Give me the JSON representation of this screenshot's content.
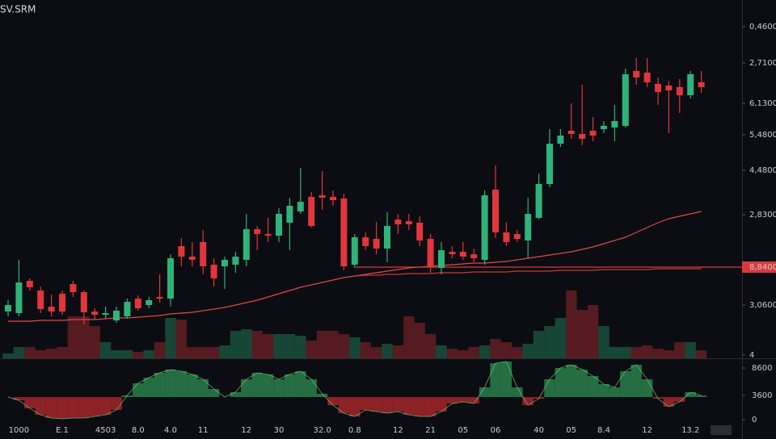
{
  "chart_data": [
    {
      "type": "candlestick",
      "title": "SV.SRM",
      "categories": [
        null,
        "1000",
        null,
        null,
        null,
        "E.1",
        null,
        null,
        null,
        "4503",
        null,
        null,
        "8.0",
        null,
        null,
        "4.0",
        null,
        null,
        "11",
        null,
        null,
        null,
        "12",
        null,
        null,
        "30",
        null,
        null,
        null,
        "32.0",
        null,
        null,
        "0.8",
        null,
        null,
        null,
        "12",
        null,
        null,
        "21",
        null,
        null,
        "05",
        null,
        null,
        "06",
        null,
        null,
        null,
        "40",
        null,
        null,
        "05",
        null,
        null,
        "8.4",
        null,
        null,
        null,
        "12",
        null,
        null,
        null,
        "13.2",
        null
      ],
      "open": [
        58,
        56,
        96,
        84,
        64,
        80,
        92,
        82,
        58,
        54,
        47,
        52,
        74,
        66,
        76,
        74,
        139,
        126,
        144,
        116,
        114,
        116,
        122,
        160,
        154,
        152,
        168,
        182,
        200,
        202,
        200,
        198,
        116,
        150,
        148,
        136,
        172,
        170,
        168,
        148,
        112,
        132,
        132,
        129,
        122,
        209,
        156,
        154,
        146,
        174,
        216,
        266,
        282,
        278,
        282,
        284,
        286,
        288,
        356,
        354,
        340,
        338,
        336,
        326,
        342
      ],
      "high": [
        72,
        122,
        99,
        89,
        79,
        84,
        96,
        84,
        62,
        64,
        64,
        74,
        78,
        76,
        104,
        129,
        149,
        144,
        159,
        124,
        126,
        132,
        179,
        164,
        174,
        186,
        199,
        236,
        206,
        232,
        208,
        204,
        154,
        156,
        169,
        181,
        179,
        179,
        176,
        154,
        144,
        139,
        144,
        136,
        208,
        239,
        169,
        159,
        199,
        229,
        284,
        284,
        316,
        339,
        299,
        294,
        314,
        359,
        372,
        372,
        348,
        344,
        346,
        356,
        356
      ],
      "low": [
        52,
        52,
        84,
        56,
        52,
        54,
        76,
        42,
        48,
        49,
        44,
        49,
        59,
        62,
        69,
        64,
        114,
        114,
        104,
        89,
        86,
        106,
        114,
        134,
        144,
        144,
        134,
        179,
        162,
        184,
        189,
        109,
        112,
        134,
        129,
        119,
        154,
        159,
        139,
        106,
        104,
        124,
        122,
        119,
        116,
        149,
        139,
        144,
        124,
        172,
        212,
        262,
        272,
        264,
        269,
        279,
        269,
        286,
        339,
        336,
        314,
        279,
        304,
        322,
        329
      ],
      "close": [
        66,
        94,
        88,
        61,
        58,
        58,
        82,
        57,
        54,
        56,
        59,
        70,
        62,
        72,
        74,
        124,
        126,
        122,
        114,
        99,
        122,
        126,
        160,
        154,
        152,
        179,
        189,
        194,
        164,
        199,
        196,
        114,
        150,
        139,
        136,
        164,
        166,
        166,
        146,
        114,
        134,
        129,
        126,
        124,
        202,
        156,
        144,
        148,
        179,
        216,
        266,
        276,
        278,
        272,
        276,
        288,
        294,
        352,
        348,
        342,
        330,
        332,
        326,
        352,
        336
      ],
      "volume": [
        6,
        14,
        14,
        10,
        12,
        14,
        52,
        52,
        40,
        20,
        10,
        10,
        8,
        10,
        20,
        50,
        48,
        14,
        14,
        14,
        16,
        34,
        36,
        34,
        30,
        30,
        30,
        28,
        22,
        34,
        34,
        30,
        26,
        20,
        14,
        18,
        16,
        52,
        44,
        30,
        16,
        12,
        10,
        14,
        16,
        24,
        20,
        14,
        18,
        34,
        40,
        50,
        84,
        60,
        66,
        40,
        14,
        14,
        14,
        16,
        12,
        10,
        20,
        20,
        10
      ],
      "up_color": "#2fb37a",
      "down_color": "#e0363c",
      "lines": [
        {
          "color": "#e0484a",
          "values": [
            46,
            46,
            46,
            47,
            47,
            47,
            48,
            48,
            48,
            49,
            50,
            50,
            51,
            52,
            53,
            55,
            56,
            57,
            59,
            61,
            63,
            66,
            69,
            72,
            76,
            80,
            84,
            88,
            91,
            94,
            97,
            100,
            102,
            104,
            106,
            108,
            110,
            112,
            113,
            114,
            115,
            116,
            117,
            118,
            118,
            119,
            120,
            122,
            124,
            126,
            128,
            130,
            132,
            135,
            138,
            142,
            146,
            150,
            156,
            162,
            168,
            173,
            176,
            179,
            182
          ]
        },
        {
          "color": "#c8383a",
          "values": [
            null,
            null,
            null,
            null,
            null,
            null,
            null,
            null,
            null,
            null,
            null,
            null,
            null,
            null,
            null,
            null,
            null,
            null,
            null,
            null,
            null,
            null,
            null,
            null,
            null,
            null,
            null,
            null,
            null,
            null,
            null,
            null,
            102,
            103,
            103,
            104,
            104,
            105,
            105,
            105,
            106,
            106,
            106,
            107,
            107,
            107,
            107,
            108,
            108,
            108,
            108,
            109,
            109,
            109,
            109,
            110,
            110,
            110,
            110,
            110,
            111,
            111,
            111,
            111,
            111
          ]
        }
      ],
      "ylim": [
        0,
        444
      ],
      "yticks": [
        {
          "value": 411,
          "label": "0,4600"
        },
        {
          "value": 366,
          "label": "2,7100"
        },
        {
          "value": 316,
          "label": "6,1300"
        },
        {
          "value": 277,
          "label": "5,4800"
        },
        {
          "value": 233,
          "label": "4,4800"
        },
        {
          "value": 178,
          "label": "2,8300"
        },
        {
          "value": 113,
          "label": "8,8400"
        },
        {
          "value": 66,
          "label": "3,0600"
        },
        4
      ]
    },
    {
      "type": "bar",
      "values": [
        28,
        24,
        14,
        6,
        2,
        1,
        2,
        2,
        4,
        6,
        12,
        30,
        45,
        52,
        58,
        62,
        60,
        56,
        50,
        38,
        28,
        34,
        50,
        58,
        56,
        50,
        56,
        60,
        50,
        32,
        18,
        8,
        4,
        12,
        10,
        8,
        10,
        6,
        4,
        4,
        10,
        20,
        22,
        20,
        40,
        70,
        72,
        40,
        18,
        26,
        50,
        64,
        68,
        62,
        54,
        44,
        40,
        60,
        68,
        50,
        26,
        16,
        22,
        34,
        30
      ],
      "up_color": "#2e8f52",
      "down_color": "#b8282e",
      "ylim": [
        -24,
        73
      ],
      "yticks": [
        {
          "value": 64,
          "label": "8600"
        },
        {
          "value": 30,
          "label": "3600"
        },
        0
      ]
    }
  ]
}
